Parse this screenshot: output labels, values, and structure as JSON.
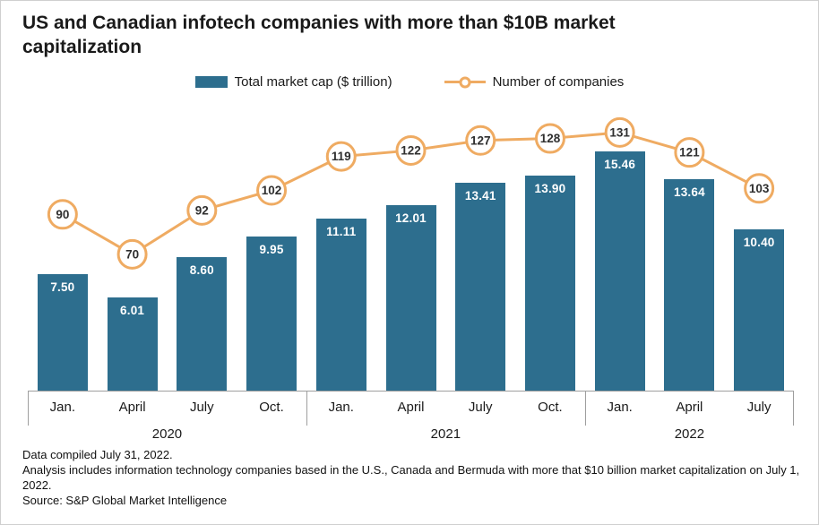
{
  "footnotes": {
    "line1": "Data compiled July 31, 2022.",
    "line2": "Analysis includes information technology companies based in the U.S., Canada and Bermuda with more that $10 billion market capitalization on July 1, 2022.",
    "line3": "Source: S&P Global Market Intelligence"
  },
  "colors": {
    "bar": "#2d6e8e",
    "line": "#efab62",
    "marker_fill": "#ffffff",
    "marker_text": "#2f2f2f",
    "axis": "#9e9e9e",
    "bar_value_text": "#ffffff",
    "text": "#1a1a1a"
  },
  "chart_data": {
    "type": "bar+line combo",
    "title": "US and Canadian infotech companies with more than $10B market capitalization",
    "categories": [
      "Jan.",
      "April",
      "July",
      "Oct.",
      "Jan.",
      "April",
      "July",
      "Oct.",
      "Jan.",
      "April",
      "July"
    ],
    "year_groups": [
      {
        "label": "2020",
        "span": 4
      },
      {
        "label": "2021",
        "span": 4
      },
      {
        "label": "2022",
        "span": 3
      }
    ],
    "series": [
      {
        "name": "Total market cap ($ trillion)",
        "type": "bar",
        "color": "#2d6e8e",
        "values": [
          7.5,
          6.01,
          8.6,
          9.95,
          11.11,
          12.01,
          13.41,
          13.9,
          15.46,
          13.64,
          10.4
        ]
      },
      {
        "name": "Number of companies",
        "type": "line",
        "color": "#efab62",
        "values": [
          90,
          70,
          92,
          102,
          119,
          122,
          127,
          128,
          131,
          121,
          103
        ]
      }
    ],
    "legend_position": "top",
    "value_labels": true,
    "grid": false
  }
}
